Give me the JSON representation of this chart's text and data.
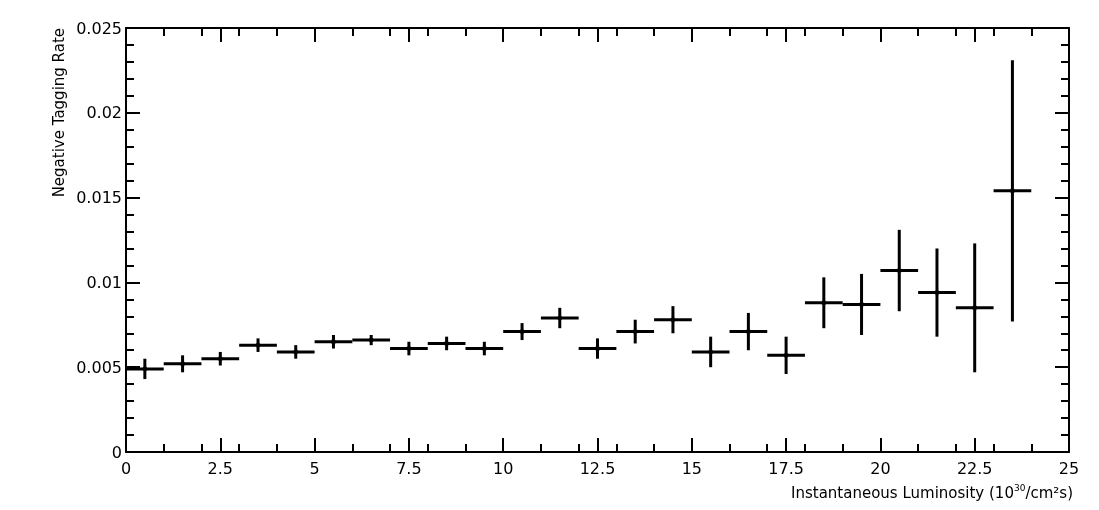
{
  "chart_data": {
    "type": "scatter",
    "xlabel": "Instantaneous Luminosity (10$^{30}$/cm²s)",
    "ylabel": "Negative Tagging Rate",
    "x": [
      0.5,
      1.5,
      2.5,
      3.5,
      4.5,
      5.5,
      6.5,
      7.5,
      8.5,
      9.5,
      10.5,
      11.5,
      12.5,
      13.5,
      14.5,
      15.5,
      16.5,
      17.5,
      18.5,
      19.5,
      20.5,
      21.5,
      22.5,
      23.5
    ],
    "values": [
      0.0049,
      0.0052,
      0.0055,
      0.0063,
      0.0059,
      0.0065,
      0.0066,
      0.0061,
      0.0064,
      0.0061,
      0.0071,
      0.0079,
      0.0061,
      0.0071,
      0.0078,
      0.0059,
      0.0071,
      0.0057,
      0.0088,
      0.0087,
      0.0107,
      0.0094,
      0.0085,
      0.0154
    ],
    "errors": [
      0.0006,
      0.0005,
      0.0004,
      0.0004,
      0.0004,
      0.0004,
      0.0003,
      0.0004,
      0.0004,
      0.0004,
      0.0005,
      0.0006,
      0.0006,
      0.0007,
      0.0008,
      0.0009,
      0.0011,
      0.0011,
      0.0015,
      0.0018,
      0.0024,
      0.0026,
      0.0038,
      [
        0.0077,
        0.0231
      ]
    ],
    "xerrors": [
      0.5,
      0.5,
      0.5,
      0.5,
      0.5,
      0.5,
      0.5,
      0.5,
      0.5,
      0.5,
      0.5,
      0.5,
      0.5,
      0.5,
      0.5,
      0.5,
      0.5,
      0.5,
      0.5,
      0.5,
      0.5,
      0.5,
      0.5,
      0.5
    ],
    "color": "#000000",
    "marker": "square",
    "grid": false,
    "xlim": [
      0,
      25
    ],
    "xticks": [
      0,
      2.5,
      5,
      7.5,
      10,
      12.5,
      15,
      17.5,
      20,
      22.5,
      25
    ],
    "ylim": [
      0,
      0.025
    ],
    "yticks": [
      0,
      0.005,
      0.01,
      0.015,
      0.02,
      0.025
    ]
  }
}
